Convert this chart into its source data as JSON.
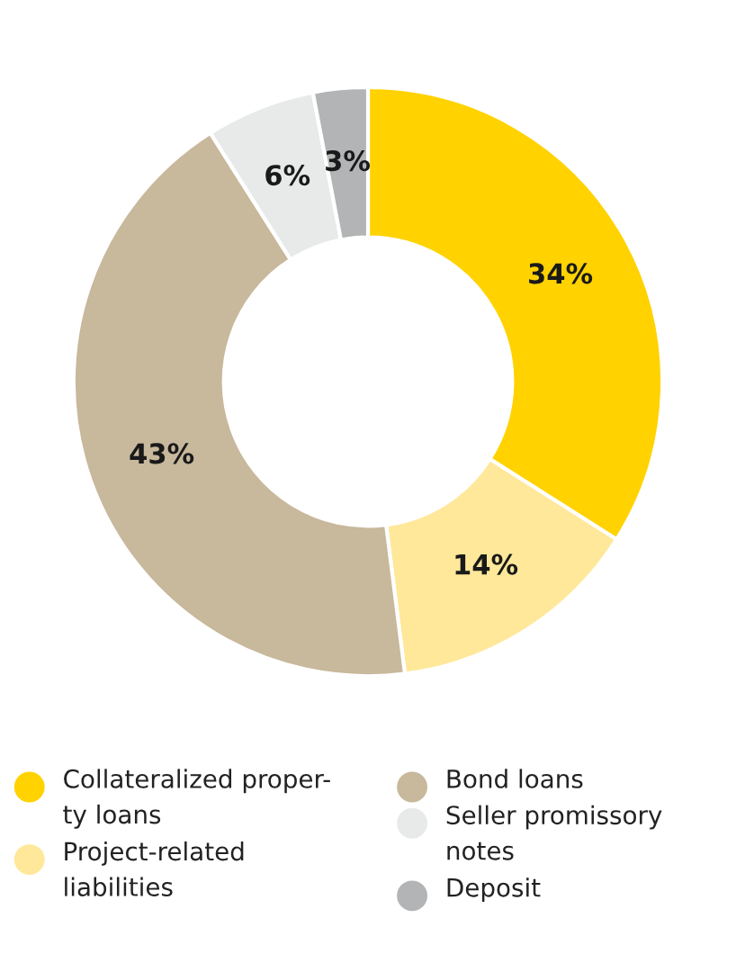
{
  "chart_data": {
    "type": "donut",
    "categories": [
      "Collateralized proper-\nty loans",
      "Project-related\nliabilities",
      "Bond loans",
      "Seller promissory\nnotes",
      "Deposit"
    ],
    "values": [
      34,
      14,
      43,
      6,
      3
    ],
    "colors": [
      "#ffd200",
      "#ffe89a",
      "#c8b89c",
      "#e8eaea",
      "#b3b4b6"
    ],
    "value_labels": [
      "34%",
      "14%",
      "43%",
      "6%",
      "3%"
    ],
    "legend": "bottom"
  }
}
